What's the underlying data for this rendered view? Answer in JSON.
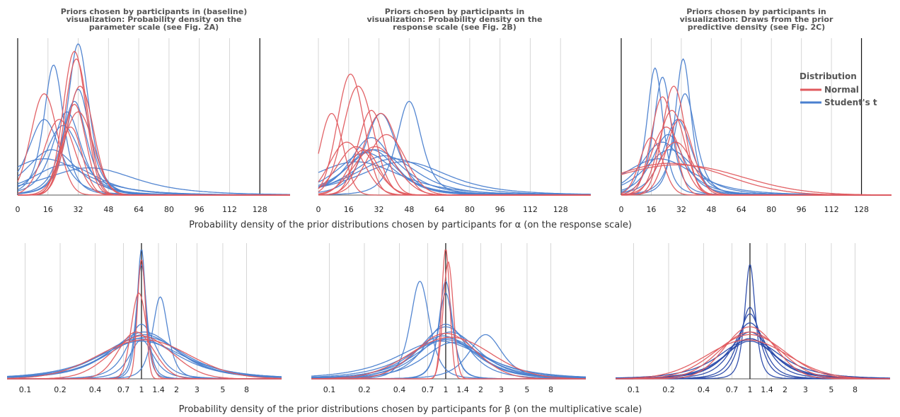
{
  "colors": {
    "normal": "#e05a5e",
    "student_t": "#4a7fcf",
    "student_t_dark": "#2747a8",
    "grid": "#d6d6d6"
  },
  "row_labels": {
    "alpha": "Probability density of the prior distributions chosen by participants for α (on the response scale)",
    "beta": "Probability density of the prior distributions chosen by participants for β (on the multiplicative scale)"
  },
  "legend": {
    "title": "Distribution",
    "items": [
      "Normal",
      "Student's t"
    ]
  },
  "chart_data": [
    {
      "type": "line",
      "title": [
        "Priors chosen by participants in (baseline)",
        "visualization: Probability density on the",
        "parameter scale (see Fig. 2A)"
      ],
      "xlabel": "Probability density of the prior distributions chosen by participants for α (on the response scale)",
      "x_scale": "linear",
      "xlim": [
        0,
        144
      ],
      "x_ticks": [
        0,
        16,
        32,
        48,
        64,
        80,
        96,
        112,
        128
      ],
      "x_tick_labels": [
        "0",
        "16",
        "32",
        "48",
        "64",
        "80",
        "96",
        "112",
        "128"
      ],
      "vlines": [
        0,
        128
      ],
      "series": [
        {
          "dist": "student_t",
          "center": 32,
          "scale": 6,
          "peak": 1.0
        },
        {
          "dist": "student_t",
          "center": 19,
          "scale": 5.5,
          "peak": 0.86
        },
        {
          "dist": "student_t",
          "center": 32,
          "scale": 6.5,
          "peak": 0.7
        },
        {
          "dist": "student_t",
          "center": 30,
          "scale": 7,
          "peak": 0.62
        },
        {
          "dist": "student_t",
          "center": 26,
          "scale": 8,
          "peak": 0.55
        },
        {
          "dist": "student_t",
          "center": 14,
          "scale": 9,
          "peak": 0.5
        },
        {
          "dist": "student_t",
          "center": 18,
          "scale": 14,
          "peak": 0.3
        },
        {
          "dist": "student_t",
          "center": 14,
          "scale": 22,
          "peak": 0.24
        },
        {
          "dist": "student_t",
          "center": 25,
          "scale": 18,
          "peak": 0.2
        },
        {
          "dist": "student_t",
          "center": 38,
          "scale": 26,
          "peak": 0.18
        },
        {
          "dist": "student_t",
          "center": 24,
          "scale": 10,
          "peak": 0.46
        },
        {
          "dist": "normal",
          "center": 30,
          "scale": 6,
          "peak": 0.95
        },
        {
          "dist": "normal",
          "center": 31,
          "scale": 6,
          "peak": 0.9
        },
        {
          "dist": "normal",
          "center": 14,
          "scale": 7,
          "peak": 0.67
        },
        {
          "dist": "normal",
          "center": 33,
          "scale": 7,
          "peak": 0.72
        },
        {
          "dist": "normal",
          "center": 30,
          "scale": 6,
          "peak": 0.6
        },
        {
          "dist": "normal",
          "center": 32,
          "scale": 8,
          "peak": 0.55
        },
        {
          "dist": "normal",
          "center": 22,
          "scale": 8,
          "peak": 0.5
        },
        {
          "dist": "normal",
          "center": 28,
          "scale": 6,
          "peak": 0.45
        }
      ]
    },
    {
      "type": "line",
      "title": [
        "Priors chosen by participants in",
        "visualization: Probability density on the",
        "response scale (see Fig. 2B)"
      ],
      "xlabel": "",
      "x_scale": "linear",
      "xlim": [
        0,
        144
      ],
      "x_ticks": [
        0,
        16,
        32,
        48,
        64,
        80,
        96,
        112,
        128
      ],
      "x_tick_labels": [
        "0",
        "16",
        "32",
        "48",
        "64",
        "80",
        "96",
        "112",
        "128"
      ],
      "vlines": [],
      "series": [
        {
          "dist": "student_t",
          "center": 48,
          "scale": 7,
          "peak": 0.62
        },
        {
          "dist": "student_t",
          "center": 33,
          "scale": 9,
          "peak": 0.54
        },
        {
          "dist": "student_t",
          "center": 28,
          "scale": 12,
          "peak": 0.38
        },
        {
          "dist": "student_t",
          "center": 30,
          "scale": 16,
          "peak": 0.3
        },
        {
          "dist": "student_t",
          "center": 25,
          "scale": 16,
          "peak": 0.28
        },
        {
          "dist": "student_t",
          "center": 35,
          "scale": 18,
          "peak": 0.26
        },
        {
          "dist": "student_t",
          "center": 40,
          "scale": 22,
          "peak": 0.24
        },
        {
          "dist": "student_t",
          "center": 20,
          "scale": 25,
          "peak": 0.22
        },
        {
          "dist": "student_t",
          "center": 45,
          "scale": 25,
          "peak": 0.22
        },
        {
          "dist": "student_t",
          "center": 28,
          "scale": 14,
          "peak": 0.3
        },
        {
          "dist": "normal",
          "center": 17,
          "scale": 7,
          "peak": 0.8
        },
        {
          "dist": "normal",
          "center": 21,
          "scale": 8,
          "peak": 0.72
        },
        {
          "dist": "normal",
          "center": 7,
          "scale": 6,
          "peak": 0.54
        },
        {
          "dist": "normal",
          "center": 28,
          "scale": 7,
          "peak": 0.56
        },
        {
          "dist": "normal",
          "center": 33,
          "scale": 9,
          "peak": 0.54
        },
        {
          "dist": "normal",
          "center": 36,
          "scale": 10,
          "peak": 0.4
        },
        {
          "dist": "normal",
          "center": 15,
          "scale": 9,
          "peak": 0.35
        },
        {
          "dist": "normal",
          "center": 24,
          "scale": 8,
          "peak": 0.3
        },
        {
          "dist": "normal",
          "center": 20,
          "scale": 10,
          "peak": 0.32
        },
        {
          "dist": "normal",
          "center": 30,
          "scale": 11,
          "peak": 0.32
        }
      ]
    },
    {
      "type": "line",
      "title": [
        "Priors chosen by participants in",
        "visualization: Draws from the prior",
        "predictive density (see Fig. 2C)"
      ],
      "xlabel": "",
      "x_scale": "linear",
      "xlim": [
        0,
        144
      ],
      "x_ticks": [
        0,
        16,
        32,
        48,
        64,
        80,
        96,
        112,
        128
      ],
      "x_tick_labels": [
        "0",
        "16",
        "32",
        "48",
        "64",
        "80",
        "96",
        "112",
        "128"
      ],
      "vlines": [
        0,
        128
      ],
      "legend": {
        "title": "Distribution",
        "entries": [
          "Normal",
          "Student's t"
        ],
        "position": "top-right"
      },
      "series": [
        {
          "dist": "student_t",
          "center": 33,
          "scale": 4.5,
          "peak": 0.9
        },
        {
          "dist": "student_t",
          "center": 18,
          "scale": 4.5,
          "peak": 0.84
        },
        {
          "dist": "student_t",
          "center": 22,
          "scale": 5,
          "peak": 0.78
        },
        {
          "dist": "student_t",
          "center": 34,
          "scale": 6,
          "peak": 0.67
        },
        {
          "dist": "student_t",
          "center": 30,
          "scale": 8,
          "peak": 0.5
        },
        {
          "dist": "student_t",
          "center": 25,
          "scale": 9,
          "peak": 0.4
        },
        {
          "dist": "student_t",
          "center": 22,
          "scale": 12,
          "peak": 0.35
        },
        {
          "dist": "student_t",
          "center": 26,
          "scale": 14,
          "peak": 0.3
        },
        {
          "dist": "student_t",
          "center": 20,
          "scale": 20,
          "peak": 0.24
        },
        {
          "dist": "normal",
          "center": 28,
          "scale": 6,
          "peak": 0.72
        },
        {
          "dist": "normal",
          "center": 22,
          "scale": 6,
          "peak": 0.65
        },
        {
          "dist": "normal",
          "center": 27,
          "scale": 7,
          "peak": 0.56
        },
        {
          "dist": "normal",
          "center": 31,
          "scale": 7,
          "peak": 0.5
        },
        {
          "dist": "normal",
          "center": 16,
          "scale": 6,
          "peak": 0.38
        },
        {
          "dist": "normal",
          "center": 24,
          "scale": 8,
          "peak": 0.45
        },
        {
          "dist": "normal",
          "center": 29,
          "scale": 9,
          "peak": 0.35
        },
        {
          "dist": "normal",
          "center": 26,
          "scale": 30,
          "peak": 0.21
        },
        {
          "dist": "normal",
          "center": 30,
          "scale": 34,
          "peak": 0.2
        }
      ]
    },
    {
      "type": "line",
      "title": [],
      "xlabel": "Probability density of the prior distributions chosen by participants for β (on the multiplicative scale)",
      "x_scale": "log",
      "xlim": [
        0.07,
        16
      ],
      "x_ticks": [
        0.1,
        0.2,
        0.4,
        0.7,
        1,
        1.4,
        2,
        3,
        5,
        8
      ],
      "x_tick_labels": [
        "0.1",
        "0.2",
        "0.4",
        "0.7",
        "1",
        "1.4",
        "2",
        "3",
        "5",
        "8"
      ],
      "vlines": [
        1
      ],
      "series": [
        {
          "dist": "student_t",
          "center": 1.0,
          "scale": 0.09,
          "peak": 1.0
        },
        {
          "dist": "student_t",
          "center": 1.0,
          "scale": 0.11,
          "peak": 0.88
        },
        {
          "dist": "student_t",
          "center": 1.45,
          "scale": 0.16,
          "peak": 0.63
        },
        {
          "dist": "student_t",
          "center": 1.0,
          "scale": 0.3,
          "peak": 0.42
        },
        {
          "dist": "student_t",
          "center": 1.05,
          "scale": 0.7,
          "peak": 0.36
        },
        {
          "dist": "student_t",
          "center": 1.05,
          "scale": 0.75,
          "peak": 0.34
        },
        {
          "dist": "student_t",
          "center": 1.1,
          "scale": 0.8,
          "peak": 0.32
        },
        {
          "dist": "student_t",
          "center": 0.95,
          "scale": 0.8,
          "peak": 0.31
        },
        {
          "dist": "student_t",
          "center": 1.0,
          "scale": 0.9,
          "peak": 0.29
        },
        {
          "dist": "student_t",
          "center": 1.0,
          "scale": 0.25,
          "peak": 0.3
        },
        {
          "dist": "normal",
          "center": 1.0,
          "scale": 0.08,
          "peak": 0.92
        },
        {
          "dist": "normal",
          "center": 0.95,
          "scale": 0.15,
          "peak": 0.66
        },
        {
          "dist": "normal",
          "center": 0.9,
          "scale": 0.35,
          "peak": 0.36
        },
        {
          "dist": "normal",
          "center": 1.0,
          "scale": 0.6,
          "peak": 0.33
        },
        {
          "dist": "normal",
          "center": 1.05,
          "scale": 0.9,
          "peak": 0.3
        }
      ]
    },
    {
      "type": "line",
      "title": [],
      "xlabel": "",
      "x_scale": "log",
      "xlim": [
        0.07,
        16
      ],
      "x_ticks": [
        0.1,
        0.2,
        0.4,
        0.7,
        1,
        1.4,
        2,
        3,
        5,
        8
      ],
      "x_tick_labels": [
        "0.1",
        "0.2",
        "0.4",
        "0.7",
        "1",
        "1.4",
        "2",
        "3",
        "5",
        "8"
      ],
      "vlines": [
        1
      ],
      "series": [
        {
          "dist": "student_t",
          "center": 0.6,
          "scale": 0.2,
          "peak": 0.75
        },
        {
          "dist": "student_t",
          "center": 1.0,
          "scale": 0.14,
          "peak": 0.75
        },
        {
          "dist": "student_t",
          "center": 1.0,
          "scale": 0.15,
          "peak": 0.66
        },
        {
          "dist": "student_t",
          "center": 2.2,
          "scale": 0.35,
          "peak": 0.34
        },
        {
          "dist": "student_t",
          "center": 1.0,
          "scale": 0.55,
          "peak": 0.4
        },
        {
          "dist": "student_t",
          "center": 1.1,
          "scale": 0.6,
          "peak": 0.36
        },
        {
          "dist": "student_t",
          "center": 0.95,
          "scale": 0.65,
          "peak": 0.33
        },
        {
          "dist": "student_t",
          "center": 1.05,
          "scale": 0.7,
          "peak": 0.31
        },
        {
          "dist": "student_t",
          "center": 1.0,
          "scale": 0.8,
          "peak": 0.3
        },
        {
          "dist": "student_t",
          "center": 0.9,
          "scale": 0.9,
          "peak": 0.29
        },
        {
          "dist": "student_t",
          "center": 1.15,
          "scale": 0.6,
          "peak": 0.28
        },
        {
          "dist": "student_t",
          "center": 1.0,
          "scale": 0.45,
          "peak": 0.42
        },
        {
          "dist": "normal",
          "center": 1.0,
          "scale": 0.08,
          "peak": 1.0
        },
        {
          "dist": "normal",
          "center": 1.05,
          "scale": 0.1,
          "peak": 0.9
        },
        {
          "dist": "normal",
          "center": 1.0,
          "scale": 0.6,
          "peak": 0.35
        },
        {
          "dist": "normal",
          "center": 1.1,
          "scale": 0.8,
          "peak": 0.32
        }
      ]
    },
    {
      "type": "line",
      "title": [],
      "xlabel": "",
      "x_scale": "log",
      "xlim": [
        0.07,
        16
      ],
      "x_ticks": [
        0.1,
        0.2,
        0.4,
        0.7,
        1,
        1.4,
        2,
        3,
        5,
        8
      ],
      "x_tick_labels": [
        "0.1",
        "0.2",
        "0.4",
        "0.7",
        "1",
        "1.4",
        "2",
        "3",
        "5",
        "8"
      ],
      "vlines": [
        1
      ],
      "series": [
        {
          "dist": "student_t_dark",
          "center": 1.0,
          "scale": 0.11,
          "peak": 0.88
        },
        {
          "dist": "student_t_dark",
          "center": 1.0,
          "scale": 0.2,
          "peak": 0.55
        },
        {
          "dist": "student_t_dark",
          "center": 1.0,
          "scale": 0.25,
          "peak": 0.5
        },
        {
          "dist": "student_t_dark",
          "center": 1.0,
          "scale": 0.35,
          "peak": 0.43
        },
        {
          "dist": "student_t_dark",
          "center": 1.0,
          "scale": 0.45,
          "peak": 0.36
        },
        {
          "dist": "student_t_dark",
          "center": 1.0,
          "scale": 0.5,
          "peak": 0.31
        },
        {
          "dist": "student_t_dark",
          "center": 1.0,
          "scale": 0.55,
          "peak": 0.29
        },
        {
          "dist": "student_t_dark",
          "center": 1.0,
          "scale": 0.65,
          "peak": 0.3
        },
        {
          "dist": "normal",
          "center": 1.0,
          "scale": 0.5,
          "peak": 0.4
        },
        {
          "dist": "normal",
          "center": 1.0,
          "scale": 0.6,
          "peak": 0.36
        },
        {
          "dist": "normal",
          "center": 1.0,
          "scale": 0.7,
          "peak": 0.34
        },
        {
          "dist": "normal",
          "center": 0.95,
          "scale": 0.8,
          "peak": 0.3
        }
      ]
    }
  ]
}
